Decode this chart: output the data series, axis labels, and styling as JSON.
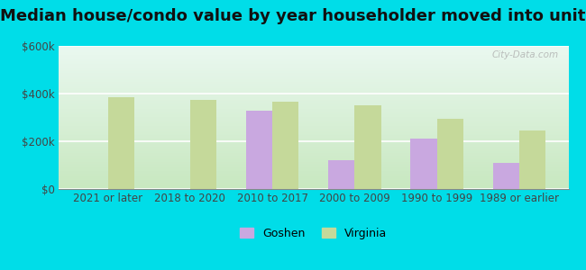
{
  "title": "Median house/condo value by year householder moved into unit",
  "categories": [
    "2021 or later",
    "2018 to 2020",
    "2010 to 2017",
    "2000 to 2009",
    "1990 to 1999",
    "1989 or earlier"
  ],
  "goshen_values": [
    null,
    null,
    330000,
    120000,
    210000,
    110000
  ],
  "virginia_values": [
    385000,
    375000,
    365000,
    350000,
    295000,
    245000
  ],
  "goshen_color": "#c9a8e0",
  "virginia_color": "#c5d99a",
  "outer_bg_color": "#00dde8",
  "plot_bg_top": "#eaf8f0",
  "plot_bg_bottom": "#c8e8c0",
  "ylim": [
    0,
    600000
  ],
  "yticks": [
    0,
    200000,
    400000,
    600000
  ],
  "ytick_labels": [
    "$0",
    "$200k",
    "$400k",
    "$600k"
  ],
  "bar_width": 0.32,
  "title_fontsize": 13,
  "tick_fontsize": 8.5,
  "legend_labels": [
    "Goshen",
    "Virginia"
  ],
  "watermark": "City-Data.com"
}
